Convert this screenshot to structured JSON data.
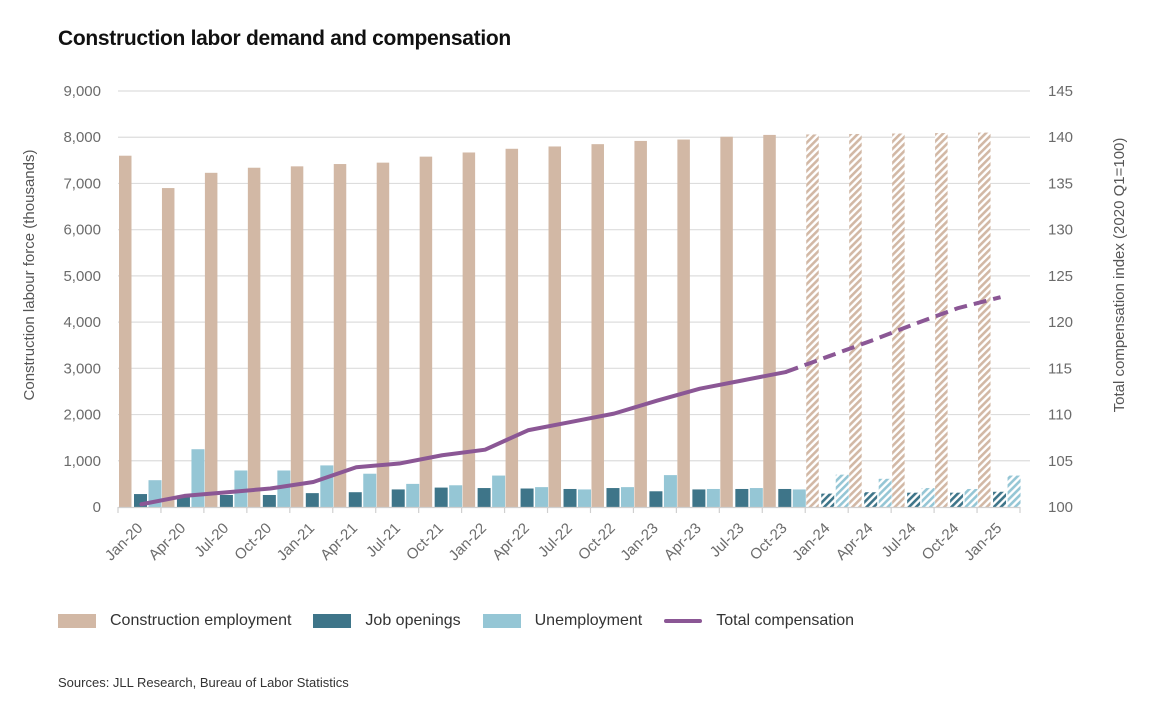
{
  "chart_data": {
    "type": "bar",
    "title": "Construction labor demand and compensation",
    "xlabel": "",
    "ylabel": "Construction labour force (thousands)",
    "y2label": "Total compensation index (2020 Q1=100)",
    "ylim": [
      0,
      9000
    ],
    "y2lim": [
      100,
      145
    ],
    "yticks": [
      "0",
      "1,000",
      "2,000",
      "3,000",
      "4,000",
      "5,000",
      "6,000",
      "7,000",
      "8,000",
      "9,000"
    ],
    "y2ticks": [
      "100",
      "105",
      "110",
      "115",
      "120",
      "125",
      "130",
      "135",
      "140",
      "145"
    ],
    "grid": true,
    "legend_position": "bottom",
    "categories": [
      "Jan-20",
      "Apr-20",
      "Jul-20",
      "Oct-20",
      "Jan-21",
      "Apr-21",
      "Jul-21",
      "Oct-21",
      "Jan-22",
      "Apr-22",
      "Jul-22",
      "Oct-22",
      "Jan-23",
      "Apr-23",
      "Jul-23",
      "Oct-23",
      "Jan-24",
      "Apr-24",
      "Jul-24",
      "Oct-24",
      "Jan-25"
    ],
    "forecast_start_index": 16,
    "series": [
      {
        "name": "Construction employment",
        "type": "bar",
        "axis": "left",
        "color": "#d2b8a5",
        "values": [
          7600,
          6900,
          7230,
          7340,
          7370,
          7420,
          7450,
          7580,
          7670,
          7750,
          7800,
          7850,
          7920,
          7950,
          8010,
          8050,
          8060,
          8070,
          8080,
          8090,
          8100
        ]
      },
      {
        "name": "Job openings",
        "type": "bar",
        "axis": "left",
        "color": "#3e7589",
        "values": [
          280,
          250,
          260,
          260,
          300,
          320,
          380,
          420,
          410,
          400,
          390,
          410,
          340,
          380,
          390,
          390,
          290,
          320,
          310,
          310,
          330
        ]
      },
      {
        "name": "Unemployment",
        "type": "bar",
        "axis": "left",
        "color": "#95c6d5",
        "values": [
          580,
          1250,
          790,
          790,
          900,
          720,
          500,
          470,
          680,
          430,
          380,
          430,
          690,
          390,
          410,
          380,
          700,
          610,
          410,
          390,
          680
        ]
      },
      {
        "name": "Total compensation",
        "type": "line",
        "axis": "right",
        "color": "#8b5795",
        "values": [
          100.3,
          101.2,
          101.6,
          102.0,
          102.7,
          104.3,
          104.7,
          105.6,
          106.2,
          108.3,
          109.2,
          110.1,
          111.5,
          112.8,
          113.7,
          114.6,
          116.3,
          118.0,
          119.8,
          121.5,
          122.7
        ]
      }
    ]
  },
  "legend": {
    "items": [
      {
        "label": "Construction employment"
      },
      {
        "label": "Job openings"
      },
      {
        "label": "Unemployment"
      },
      {
        "label": "Total compensation"
      }
    ]
  },
  "source": "Sources: JLL Research, Bureau of Labor Statistics"
}
